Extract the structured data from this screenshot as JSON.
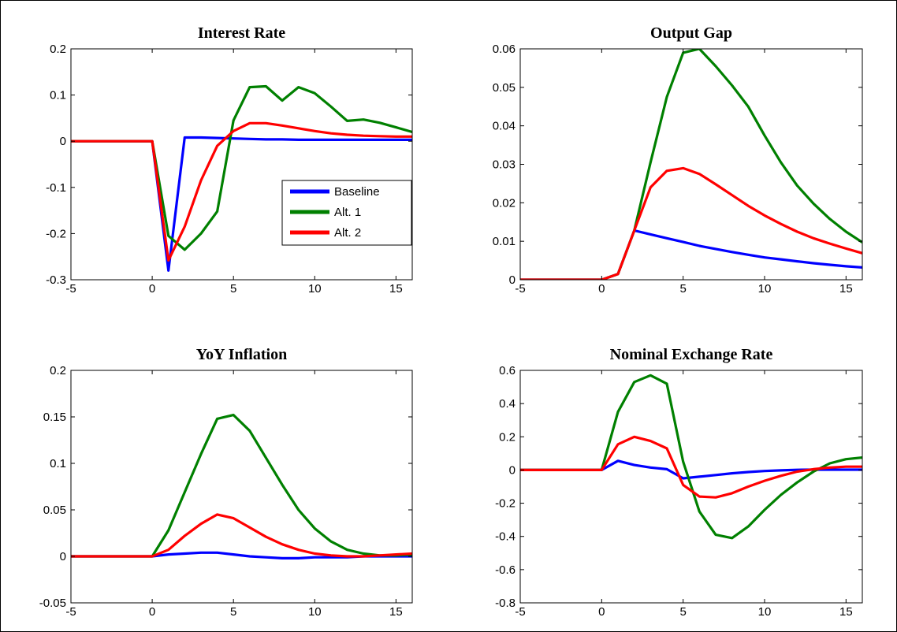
{
  "colors": {
    "Baseline": "#0000ff",
    "Alt. 1": "#008000",
    "Alt. 2": "#ff0000"
  },
  "chart_data": [
    {
      "type": "line",
      "title": "Interest Rate",
      "xlabel": "",
      "ylabel": "",
      "xlim": [
        -5,
        16
      ],
      "ylim": [
        -0.3,
        0.2
      ],
      "xticks": [
        -5,
        0,
        5,
        10,
        15
      ],
      "yticks": [
        -0.3,
        -0.2,
        -0.1,
        0,
        0.1,
        0.2
      ],
      "ytick_labels": [
        "-0.3",
        "-0.2",
        "-0.1",
        "0",
        "0.1",
        "0.2"
      ],
      "legend": {
        "placement": "center-right",
        "entries": [
          "Baseline",
          "Alt. 1",
          "Alt. 2"
        ]
      },
      "x": [
        -5,
        -4,
        -3,
        -2,
        -1,
        0,
        1,
        2,
        3,
        4,
        5,
        6,
        7,
        8,
        9,
        10,
        11,
        12,
        13,
        14,
        15,
        16
      ],
      "series": [
        {
          "name": "Baseline",
          "values": [
            0,
            0,
            0,
            0,
            0,
            0,
            -0.28,
            0.008,
            0.008,
            0.007,
            0.006,
            0.005,
            0.004,
            0.004,
            0.003,
            0.003,
            0.003,
            0.003,
            0.003,
            0.003,
            0.003,
            0.003
          ]
        },
        {
          "name": "Alt. 1",
          "values": [
            0,
            0,
            0,
            0,
            0,
            0,
            -0.205,
            -0.235,
            -0.2,
            -0.152,
            0.045,
            0.117,
            0.119,
            0.088,
            0.117,
            0.104,
            0.075,
            0.044,
            0.047,
            0.04,
            0.03,
            0.02
          ]
        },
        {
          "name": "Alt. 2",
          "values": [
            0,
            0,
            0,
            0,
            0,
            0,
            -0.258,
            -0.185,
            -0.085,
            -0.01,
            0.022,
            0.039,
            0.039,
            0.034,
            0.028,
            0.022,
            0.017,
            0.014,
            0.012,
            0.011,
            0.01,
            0.01
          ]
        }
      ]
    },
    {
      "type": "line",
      "title": "Output Gap",
      "xlabel": "",
      "ylabel": "",
      "xlim": [
        -5,
        16
      ],
      "ylim": [
        0,
        0.06
      ],
      "xticks": [
        -5,
        0,
        5,
        10,
        15
      ],
      "yticks": [
        0,
        0.01,
        0.02,
        0.03,
        0.04,
        0.05,
        0.06
      ],
      "ytick_labels": [
        "0",
        "0.01",
        "0.02",
        "0.03",
        "0.04",
        "0.05",
        "0.06"
      ],
      "x": [
        -5,
        -4,
        -3,
        -2,
        -1,
        0,
        1,
        2,
        3,
        4,
        5,
        6,
        7,
        8,
        9,
        10,
        11,
        12,
        13,
        14,
        15,
        16
      ],
      "series": [
        {
          "name": "Baseline",
          "values": [
            0,
            0,
            0,
            0,
            0,
            0,
            0.0015,
            0.0128,
            0.0118,
            0.0108,
            0.0098,
            0.0088,
            0.008,
            0.0072,
            0.0065,
            0.0058,
            0.0053,
            0.0048,
            0.0043,
            0.0039,
            0.0035,
            0.0032
          ]
        },
        {
          "name": "Alt. 1",
          "values": [
            0,
            0,
            0,
            0,
            0,
            0,
            0.0015,
            0.0128,
            0.0305,
            0.0475,
            0.059,
            0.06,
            0.0555,
            0.0505,
            0.045,
            0.0375,
            0.0305,
            0.0245,
            0.0198,
            0.0158,
            0.0125,
            0.0097
          ]
        },
        {
          "name": "Alt. 2",
          "values": [
            0,
            0,
            0,
            0,
            0,
            0,
            0.0015,
            0.0128,
            0.024,
            0.0283,
            0.029,
            0.0275,
            0.0248,
            0.022,
            0.0192,
            0.0167,
            0.0145,
            0.0125,
            0.0108,
            0.0094,
            0.0081,
            0.0069
          ]
        }
      ]
    },
    {
      "type": "line",
      "title": "YoY Inflation",
      "xlabel": "",
      "ylabel": "",
      "xlim": [
        -5,
        16
      ],
      "ylim": [
        -0.05,
        0.2
      ],
      "xticks": [
        -5,
        0,
        5,
        10,
        15
      ],
      "yticks": [
        -0.05,
        0,
        0.05,
        0.1,
        0.15,
        0.2
      ],
      "ytick_labels": [
        "-0.05",
        "0",
        "0.05",
        "0.1",
        "0.15",
        "0.2"
      ],
      "x": [
        -5,
        -4,
        -3,
        -2,
        -1,
        0,
        1,
        2,
        3,
        4,
        5,
        6,
        7,
        8,
        9,
        10,
        11,
        12,
        13,
        14,
        15,
        16
      ],
      "series": [
        {
          "name": "Baseline",
          "values": [
            0,
            0,
            0,
            0,
            0,
            0,
            0.002,
            0.003,
            0.004,
            0.004,
            0.002,
            0.0,
            -0.001,
            -0.002,
            -0.002,
            -0.001,
            -0.001,
            -0.001,
            0,
            0,
            0,
            0
          ]
        },
        {
          "name": "Alt. 1",
          "values": [
            0,
            0,
            0,
            0,
            0,
            0,
            0.028,
            0.069,
            0.11,
            0.148,
            0.152,
            0.135,
            0.106,
            0.077,
            0.05,
            0.03,
            0.016,
            0.007,
            0.003,
            0.001,
            0.001,
            0.002
          ]
        },
        {
          "name": "Alt. 2",
          "values": [
            0,
            0,
            0,
            0,
            0,
            0,
            0.007,
            0.022,
            0.035,
            0.045,
            0.041,
            0.031,
            0.021,
            0.013,
            0.007,
            0.003,
            0.001,
            0,
            0,
            0.001,
            0.002,
            0.003
          ]
        }
      ]
    },
    {
      "type": "line",
      "title": "Nominal Exchange Rate",
      "xlabel": "",
      "ylabel": "",
      "xlim": [
        -5,
        16
      ],
      "ylim": [
        -0.8,
        0.6
      ],
      "xticks": [
        -5,
        0,
        5,
        10,
        15
      ],
      "yticks": [
        -0.8,
        -0.6,
        -0.4,
        -0.2,
        0,
        0.2,
        0.4,
        0.6
      ],
      "ytick_labels": [
        "-0.8",
        "-0.6",
        "-0.4",
        "-0.2",
        "0",
        "0.2",
        "0.4",
        "0.6"
      ],
      "x": [
        -5,
        -4,
        -3,
        -2,
        -1,
        0,
        1,
        2,
        3,
        4,
        5,
        6,
        7,
        8,
        9,
        10,
        11,
        12,
        13,
        14,
        15,
        16
      ],
      "series": [
        {
          "name": "Baseline",
          "values": [
            0,
            0,
            0,
            0,
            0,
            0,
            0.055,
            0.03,
            0.015,
            0.005,
            -0.05,
            -0.04,
            -0.03,
            -0.02,
            -0.012,
            -0.006,
            -0.002,
            0.001,
            0.002,
            0.002,
            0.002,
            0.002
          ]
        },
        {
          "name": "Alt. 1",
          "values": [
            0,
            0,
            0,
            0,
            0,
            0,
            0.35,
            0.53,
            0.57,
            0.52,
            0.05,
            -0.25,
            -0.39,
            -0.41,
            -0.34,
            -0.24,
            -0.15,
            -0.075,
            -0.01,
            0.04,
            0.065,
            0.075
          ]
        },
        {
          "name": "Alt. 2",
          "values": [
            0,
            0,
            0,
            0,
            0,
            0,
            0.155,
            0.2,
            0.175,
            0.13,
            -0.09,
            -0.16,
            -0.165,
            -0.14,
            -0.1,
            -0.065,
            -0.035,
            -0.01,
            0.005,
            0.015,
            0.02,
            0.02
          ]
        }
      ]
    }
  ]
}
